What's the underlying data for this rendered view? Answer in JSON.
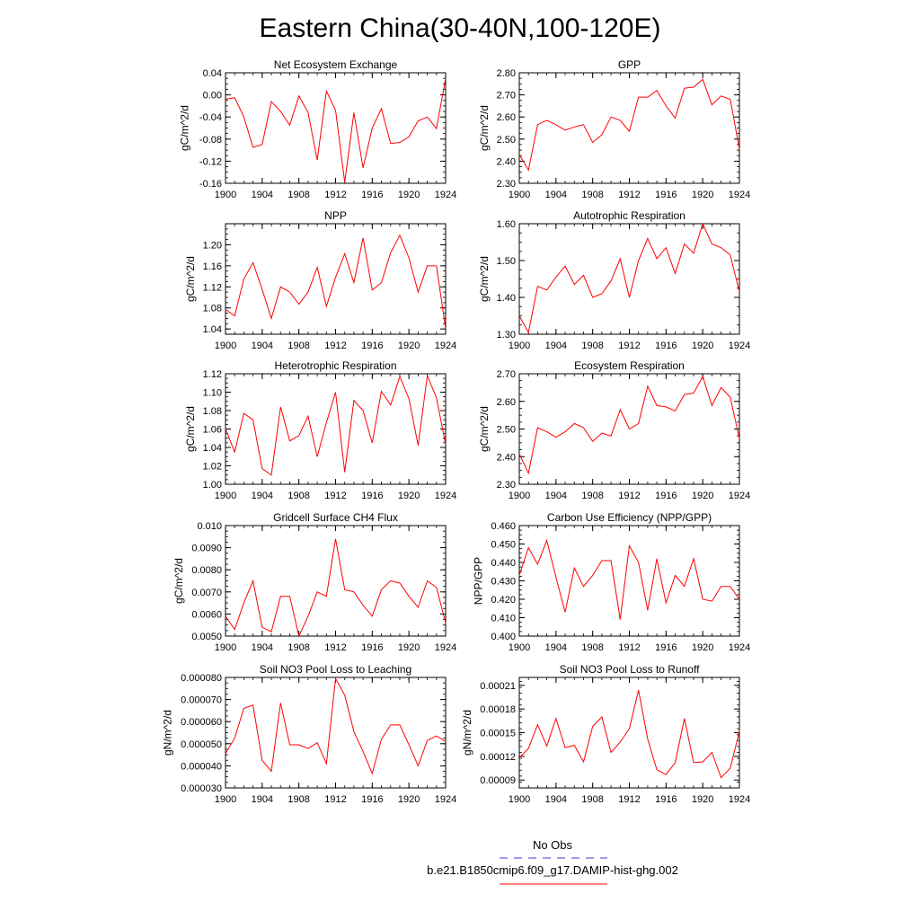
{
  "figure": {
    "title": "Eastern China(30-40N,100-120E)"
  },
  "legend": {
    "entries": [
      {
        "label": "No Obs",
        "color": "#3b3bd6",
        "dashed": true
      },
      {
        "label": "b.e21.B1850cmip6.f09_g17.DAMIP-hist-ghg.002",
        "color": "#ff0000",
        "dashed": false
      }
    ]
  },
  "chart_data": [
    {
      "type": "line",
      "title": "Net Ecosystem Exchange",
      "ylabel": "gC/m^2/d",
      "x": [
        1900,
        1901,
        1902,
        1903,
        1904,
        1905,
        1906,
        1907,
        1908,
        1909,
        1910,
        1911,
        1912,
        1913,
        1914,
        1915,
        1916,
        1917,
        1918,
        1919,
        1920,
        1921,
        1922,
        1923,
        1924
      ],
      "values": [
        -0.008,
        -0.005,
        -0.04,
        -0.095,
        -0.09,
        -0.012,
        -0.03,
        -0.055,
        -0.002,
        -0.032,
        -0.118,
        0.007,
        -0.028,
        -0.158,
        -0.032,
        -0.132,
        -0.06,
        -0.025,
        -0.088,
        -0.086,
        -0.076,
        -0.047,
        -0.04,
        -0.061,
        0.03
      ],
      "xlim": [
        1900,
        1924
      ],
      "ylim": [
        -0.16,
        0.04
      ],
      "xticks": [
        1900,
        1904,
        1908,
        1912,
        1916,
        1920,
        1924
      ],
      "yticks": [
        "-0.16",
        "-0.12",
        "-0.08",
        "-0.04",
        "0.00",
        "0.04"
      ],
      "color": "#ff0000"
    },
    {
      "type": "line",
      "title": "GPP",
      "ylabel": "gC/m^2/d",
      "x": [
        1900,
        1901,
        1902,
        1903,
        1904,
        1905,
        1906,
        1907,
        1908,
        1909,
        1910,
        1911,
        1912,
        1913,
        1914,
        1915,
        1916,
        1917,
        1918,
        1919,
        1920,
        1921,
        1922,
        1923,
        1924
      ],
      "values": [
        2.43,
        2.36,
        2.565,
        2.585,
        2.565,
        2.54,
        2.555,
        2.565,
        2.485,
        2.52,
        2.6,
        2.585,
        2.535,
        2.69,
        2.69,
        2.72,
        2.65,
        2.595,
        2.73,
        2.735,
        2.77,
        2.655,
        2.695,
        2.68,
        2.455
      ],
      "xlim": [
        1900,
        1924
      ],
      "ylim": [
        2.3,
        2.8
      ],
      "xticks": [
        1900,
        1904,
        1908,
        1912,
        1916,
        1920,
        1924
      ],
      "yticks": [
        "2.30",
        "2.40",
        "2.50",
        "2.60",
        "2.70",
        "2.80"
      ],
      "color": "#ff0000"
    },
    {
      "type": "line",
      "title": "NPP",
      "ylabel": "gC/m^2/d",
      "x": [
        1900,
        1901,
        1902,
        1903,
        1904,
        1905,
        1906,
        1907,
        1908,
        1909,
        1910,
        1911,
        1912,
        1913,
        1914,
        1915,
        1916,
        1917,
        1918,
        1919,
        1920,
        1921,
        1922,
        1923,
        1924
      ],
      "values": [
        1.077,
        1.065,
        1.135,
        1.166,
        1.115,
        1.06,
        1.12,
        1.11,
        1.087,
        1.11,
        1.157,
        1.083,
        1.138,
        1.183,
        1.128,
        1.213,
        1.114,
        1.128,
        1.185,
        1.218,
        1.175,
        1.11,
        1.16,
        1.16,
        1.04
      ],
      "xlim": [
        1900,
        1924
      ],
      "ylim": [
        1.03,
        1.24
      ],
      "xticks": [
        1900,
        1904,
        1908,
        1912,
        1916,
        1920,
        1924
      ],
      "yticks": [
        "1.04",
        "1.08",
        "1.12",
        "1.16",
        "1.20"
      ],
      "color": "#ff0000"
    },
    {
      "type": "line",
      "title": "Autotrophic Respiration",
      "ylabel": "gC/m^2/d",
      "x": [
        1900,
        1901,
        1902,
        1903,
        1904,
        1905,
        1906,
        1907,
        1908,
        1909,
        1910,
        1911,
        1912,
        1913,
        1914,
        1915,
        1916,
        1917,
        1918,
        1919,
        1920,
        1921,
        1922,
        1923,
        1924
      ],
      "values": [
        1.35,
        1.305,
        1.43,
        1.42,
        1.455,
        1.485,
        1.435,
        1.46,
        1.4,
        1.41,
        1.445,
        1.505,
        1.4,
        1.5,
        1.56,
        1.505,
        1.535,
        1.465,
        1.545,
        1.52,
        1.6,
        1.545,
        1.535,
        1.515,
        1.415
      ],
      "xlim": [
        1900,
        1924
      ],
      "ylim": [
        1.3,
        1.6
      ],
      "xticks": [
        1900,
        1904,
        1908,
        1912,
        1916,
        1920,
        1924
      ],
      "yticks": [
        "1.30",
        "1.40",
        "1.50",
        "1.60"
      ],
      "color": "#ff0000"
    },
    {
      "type": "line",
      "title": "Heterotrophic Respiration",
      "ylabel": "gC/m^2/d",
      "x": [
        1900,
        1901,
        1902,
        1903,
        1904,
        1905,
        1906,
        1907,
        1908,
        1909,
        1910,
        1911,
        1912,
        1913,
        1914,
        1915,
        1916,
        1917,
        1918,
        1919,
        1920,
        1921,
        1922,
        1923,
        1924
      ],
      "values": [
        1.06,
        1.035,
        1.077,
        1.07,
        1.017,
        1.01,
        1.084,
        1.047,
        1.053,
        1.074,
        1.03,
        1.067,
        1.1,
        1.013,
        1.091,
        1.08,
        1.045,
        1.101,
        1.086,
        1.117,
        1.093,
        1.042,
        1.118,
        1.094,
        1.043
      ],
      "xlim": [
        1900,
        1924
      ],
      "ylim": [
        1.0,
        1.12
      ],
      "xticks": [
        1900,
        1904,
        1908,
        1912,
        1916,
        1920,
        1924
      ],
      "yticks": [
        "1.00",
        "1.02",
        "1.04",
        "1.06",
        "1.08",
        "1.10",
        "1.12"
      ],
      "color": "#ff0000"
    },
    {
      "type": "line",
      "title": "Ecosystem Respiration",
      "ylabel": "gC/m^2/d",
      "x": [
        1900,
        1901,
        1902,
        1903,
        1904,
        1905,
        1906,
        1907,
        1908,
        1909,
        1910,
        1911,
        1912,
        1913,
        1914,
        1915,
        1916,
        1917,
        1918,
        1919,
        1920,
        1921,
        1922,
        1923,
        1924
      ],
      "values": [
        2.41,
        2.34,
        2.505,
        2.49,
        2.47,
        2.49,
        2.52,
        2.505,
        2.455,
        2.485,
        2.475,
        2.57,
        2.5,
        2.52,
        2.655,
        2.585,
        2.58,
        2.565,
        2.625,
        2.63,
        2.69,
        2.585,
        2.65,
        2.615,
        2.465
      ],
      "xlim": [
        1900,
        1924
      ],
      "ylim": [
        2.3,
        2.7
      ],
      "xticks": [
        1900,
        1904,
        1908,
        1912,
        1916,
        1920,
        1924
      ],
      "yticks": [
        "2.30",
        "2.40",
        "2.50",
        "2.60",
        "2.70"
      ],
      "color": "#ff0000"
    },
    {
      "type": "line",
      "title": "Gridcell Surface CH4 Flux",
      "ylabel": "gC/m^2/d",
      "x": [
        1900,
        1901,
        1902,
        1903,
        1904,
        1905,
        1906,
        1907,
        1908,
        1909,
        1910,
        1911,
        1912,
        1913,
        1914,
        1915,
        1916,
        1917,
        1918,
        1919,
        1920,
        1921,
        1922,
        1923,
        1924
      ],
      "values": [
        0.0059,
        0.0053,
        0.0065,
        0.0075,
        0.0054,
        0.0052,
        0.0068,
        0.0068,
        0.005,
        0.0059,
        0.007,
        0.0068,
        0.0094,
        0.0071,
        0.007,
        0.0064,
        0.0059,
        0.0071,
        0.0075,
        0.0074,
        0.0068,
        0.0063,
        0.0075,
        0.0072,
        0.0056
      ],
      "xlim": [
        1900,
        1924
      ],
      "ylim": [
        0.005,
        0.01
      ],
      "xticks": [
        1900,
        1904,
        1908,
        1912,
        1916,
        1920,
        1924
      ],
      "yticks": [
        "0.0050",
        "0.0060",
        "0.0070",
        "0.0080",
        "0.0090",
        "0.010"
      ],
      "color": "#ff0000"
    },
    {
      "type": "line",
      "title": "Carbon Use Efficiency (NPP/GPP)",
      "ylabel": "NPP/GPP",
      "x": [
        1900,
        1901,
        1902,
        1903,
        1904,
        1905,
        1906,
        1907,
        1908,
        1909,
        1910,
        1911,
        1912,
        1913,
        1914,
        1915,
        1916,
        1917,
        1918,
        1919,
        1920,
        1921,
        1922,
        1923,
        1924
      ],
      "values": [
        0.433,
        0.448,
        0.439,
        0.452,
        0.432,
        0.413,
        0.437,
        0.427,
        0.433,
        0.441,
        0.441,
        0.409,
        0.449,
        0.44,
        0.414,
        0.442,
        0.418,
        0.433,
        0.427,
        0.442,
        0.42,
        0.419,
        0.427,
        0.427,
        0.42
      ],
      "xlim": [
        1900,
        1924
      ],
      "ylim": [
        0.4,
        0.46
      ],
      "xticks": [
        1900,
        1904,
        1908,
        1912,
        1916,
        1920,
        1924
      ],
      "yticks": [
        "0.400",
        "0.410",
        "0.420",
        "0.430",
        "0.440",
        "0.450",
        "0.460"
      ],
      "color": "#ff0000"
    },
    {
      "type": "line",
      "title": "Soil NO3 Pool Loss to Leaching",
      "ylabel": "gN/m^2/d",
      "x": [
        1900,
        1901,
        1902,
        1903,
        1904,
        1905,
        1906,
        1907,
        1908,
        1909,
        1910,
        1911,
        1912,
        1913,
        1914,
        1915,
        1916,
        1917,
        1918,
        1919,
        1920,
        1921,
        1922,
        1923,
        1924
      ],
      "values": [
        4.55e-05,
        5.25e-05,
        6.6e-05,
        6.75e-05,
        4.25e-05,
        3.75e-05,
        6.85e-05,
        4.95e-05,
        4.95e-05,
        4.78e-05,
        5.05e-05,
        4.1e-05,
        7.95e-05,
        7.2e-05,
        5.55e-05,
        4.65e-05,
        3.65e-05,
        5.2e-05,
        5.85e-05,
        5.85e-05,
        4.95e-05,
        4e-05,
        5.15e-05,
        5.35e-05,
        5.1e-05
      ],
      "xlim": [
        1900,
        1924
      ],
      "ylim": [
        3e-05,
        8e-05
      ],
      "xticks": [
        1900,
        1904,
        1908,
        1912,
        1916,
        1920,
        1924
      ],
      "yticks": [
        "0.000030",
        "0.000040",
        "0.000050",
        "0.000060",
        "0.000070",
        "0.000080"
      ],
      "color": "#ff0000"
    },
    {
      "type": "line",
      "title": "Soil NO3 Pool Loss to Runoff",
      "ylabel": "gN/m^2/d",
      "x": [
        1900,
        1901,
        1902,
        1903,
        1904,
        1905,
        1906,
        1907,
        1908,
        1909,
        1910,
        1911,
        1912,
        1913,
        1914,
        1915,
        1916,
        1917,
        1918,
        1919,
        1920,
        1921,
        1922,
        1923,
        1924
      ],
      "values": [
        0.000118,
        0.00013,
        0.00016,
        0.000133,
        0.000168,
        0.000131,
        0.000134,
        0.000113,
        0.000158,
        0.00017,
        0.000125,
        0.000138,
        0.000155,
        0.000204,
        0.000142,
        0.000103,
        9.7e-05,
        0.000112,
        0.000168,
        0.000112,
        0.000113,
        0.000125,
        9.3e-05,
        0.000105,
        0.000152
      ],
      "xlim": [
        1900,
        1924
      ],
      "ylim": [
        8e-05,
        0.00022
      ],
      "xticks": [
        1900,
        1904,
        1908,
        1912,
        1916,
        1920,
        1924
      ],
      "yticks": [
        "0.00009",
        "0.00012",
        "0.00015",
        "0.00018",
        "0.00021"
      ],
      "color": "#ff0000"
    }
  ]
}
